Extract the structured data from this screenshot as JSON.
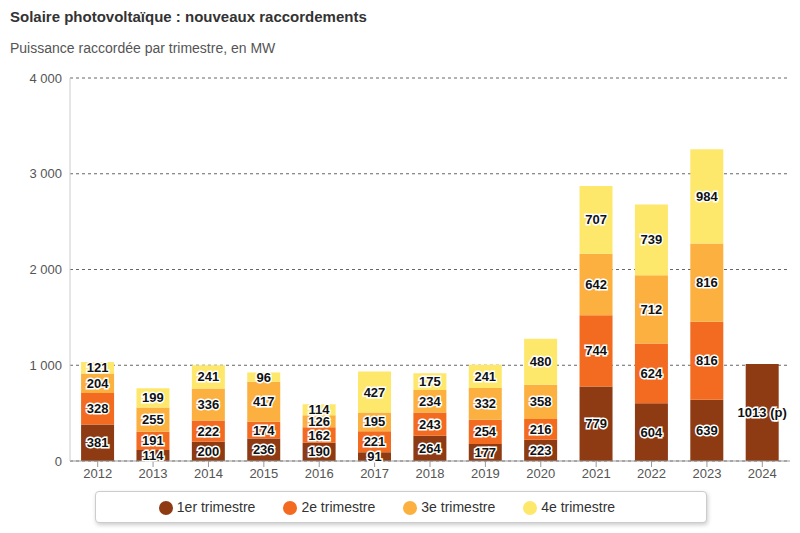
{
  "chart_data": {
    "type": "bar",
    "title": "Solaire photovoltaïque : nouveaux raccordements",
    "subtitle": "Puissance raccordée par trimestre, en MW",
    "categories": [
      "2012",
      "2013",
      "2014",
      "2015",
      "2016",
      "2017",
      "2018",
      "2019",
      "2020",
      "2021",
      "2022",
      "2023",
      "2024"
    ],
    "series": [
      {
        "name": "1er trimestre",
        "color": "#8e3b14",
        "values": [
          381,
          114,
          200,
          236,
          190,
          91,
          264,
          177,
          223,
          779,
          604,
          639,
          1013
        ],
        "value_labels": [
          "381",
          "114",
          "200",
          "236",
          "190",
          "91",
          "264",
          "177",
          "223",
          "779",
          "604",
          "639",
          "1013 (p)"
        ]
      },
      {
        "name": "2e trimestre",
        "color": "#f26b21",
        "values": [
          328,
          191,
          222,
          174,
          162,
          221,
          243,
          254,
          216,
          744,
          624,
          816,
          null
        ]
      },
      {
        "name": "3e trimestre",
        "color": "#fbb040",
        "values": [
          204,
          255,
          336,
          417,
          126,
          195,
          234,
          332,
          358,
          642,
          712,
          816,
          null
        ]
      },
      {
        "name": "4e trimestre",
        "color": "#fde86b",
        "values": [
          121,
          199,
          241,
          96,
          114,
          427,
          175,
          241,
          480,
          707,
          739,
          984,
          null
        ]
      }
    ],
    "ylim": [
      0,
      4000
    ],
    "yticks": [
      0,
      {
        "value": 1000,
        "label": "1 000"
      },
      {
        "value": 2000,
        "label": "2 000"
      },
      {
        "value": 3000,
        "label": "3 000"
      },
      {
        "value": 4000,
        "label": "4 000"
      }
    ],
    "grid": true,
    "stacked": true,
    "data_labels": true,
    "legend": "bottom"
  }
}
